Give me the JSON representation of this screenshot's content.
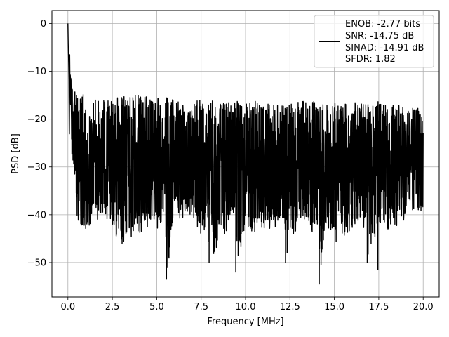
{
  "chart_data": {
    "type": "line",
    "title": "",
    "xlabel": "Frequency [MHz]",
    "ylabel": "PSD [dB]",
    "xlim": [
      -0.9,
      20.9
    ],
    "ylim": [
      -57.2,
      2.7
    ],
    "x_ticks": [
      0.0,
      2.5,
      5.0,
      7.5,
      10.0,
      12.5,
      15.0,
      17.5,
      20.0
    ],
    "x_tick_labels": [
      "0.0",
      "2.5",
      "5.0",
      "7.5",
      "10.0",
      "12.5",
      "15.0",
      "17.5",
      "20.0"
    ],
    "y_ticks": [
      0,
      -10,
      -20,
      -30,
      -40,
      -50
    ],
    "y_tick_labels": [
      "0",
      "−10",
      "−20",
      "−30",
      "−40",
      "−50"
    ],
    "grid": true,
    "legend_position": "top-right",
    "line_color": "#000000",
    "series": [
      {
        "name": "",
        "x": [
          0.0,
          0.02,
          0.04,
          0.06,
          0.08,
          0.1,
          0.15,
          0.2,
          0.3,
          0.6,
          1.0,
          1.5,
          2.0,
          3.0,
          3.05,
          4.0,
          5.0,
          5.5,
          5.55,
          6.0,
          7.5,
          7.9,
          7.95,
          9.0,
          9.4,
          9.45,
          10.0,
          12.2,
          12.25,
          12.5,
          14.1,
          14.15,
          14.5,
          15.0,
          16.8,
          16.85,
          17.4,
          17.45,
          17.5,
          20.0
        ],
        "y": [
          0.0,
          -5.0,
          -8.0,
          -12.0,
          -26.0,
          -8.5,
          -11.0,
          -16.0,
          -27.0,
          -22.0,
          -25.0,
          -28.0,
          -24.0,
          -27.0,
          -46.0,
          -25.0,
          -27.0,
          -25.0,
          -53.5,
          -24.0,
          -26.0,
          -26.0,
          -50.0,
          -27.0,
          -26.0,
          -52.0,
          -25.0,
          -27.0,
          -50.0,
          -26.0,
          -27.0,
          -54.5,
          -26.0,
          -25.0,
          -27.0,
          -50.0,
          -26.0,
          -51.5,
          -27.0,
          -26.0
        ],
        "upper_envelope": [
          0.0,
          -5.0,
          -7.0,
          -10.0,
          -14.0,
          -6.5,
          -10.0,
          -11.0,
          -13.0,
          -14.0,
          -15.0,
          -14.5,
          -16.0,
          -15.0,
          -14.5,
          -15.0,
          -15.5,
          -16.0,
          -15.0,
          -16.0,
          -16.0,
          -16.5,
          -16.0,
          -16.0,
          -16.5,
          -15.0,
          -16.0,
          -17.0,
          -17.0,
          -16.5,
          -16.0,
          -16.0,
          -17.0,
          -16.5,
          -16.5,
          -16.0,
          -17.0,
          -16.0,
          -16.5,
          -17.0
        ],
        "lower_envelope": [
          0.0,
          -5.0,
          -9.0,
          -17.0,
          -26.0,
          -13.0,
          -18.0,
          -27.0,
          -34.0,
          -44.0,
          -45.0,
          -40.0,
          -43.0,
          -46.0,
          -47.0,
          -44.0,
          -43.0,
          -41.0,
          -53.5,
          -40.0,
          -44.0,
          -43.0,
          -50.0,
          -43.0,
          -42.0,
          -52.0,
          -44.0,
          -43.0,
          -50.0,
          -45.0,
          -44.0,
          -54.5,
          -44.0,
          -46.0,
          -43.0,
          -50.0,
          -45.0,
          -51.5,
          -44.0,
          -41.0
        ]
      }
    ],
    "legend": {
      "lines": [
        "ENOB: -2.77 bits",
        "SNR: -14.75 dB",
        "SINAD: -14.91 dB",
        "SFDR: 1.82"
      ]
    }
  }
}
